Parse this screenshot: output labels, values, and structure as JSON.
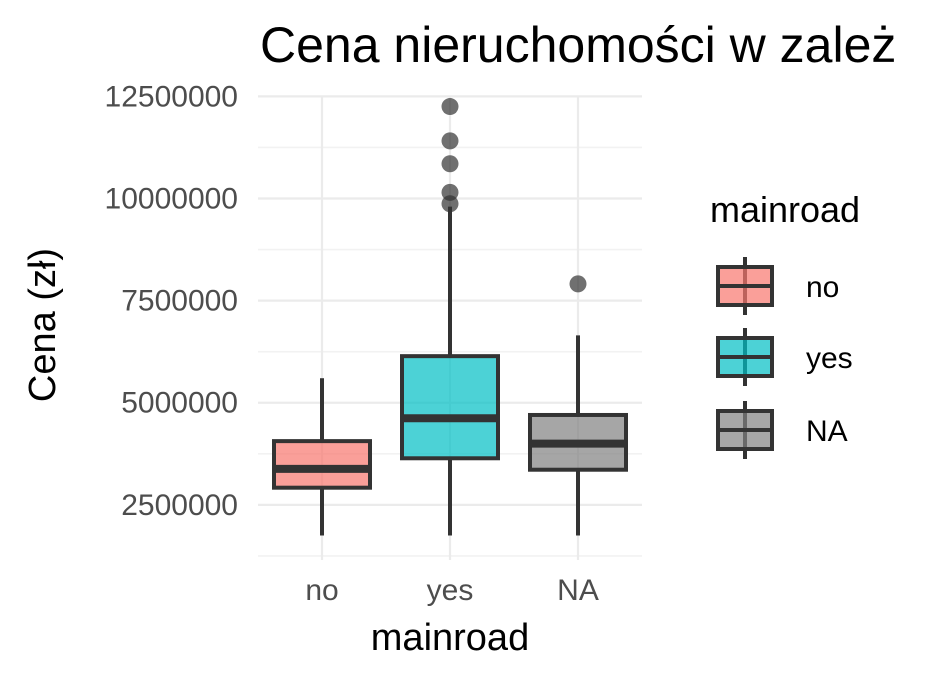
{
  "chart_data": {
    "type": "boxplot",
    "title": "Cena nieruchomości w zależ",
    "xlabel": "mainroad",
    "ylabel": "Cena (zł)",
    "categories": [
      "no",
      "yes",
      "NA"
    ],
    "ylim": [
      1150000,
      12900000
    ],
    "yticks": [
      2500000,
      5000000,
      7500000,
      10000000,
      12500000
    ],
    "ytick_labels": [
      "2500000",
      "5000000",
      "7500000",
      "10000000",
      "12500000"
    ],
    "grid": true,
    "legend": {
      "title": "mainroad",
      "position": "right",
      "entries": [
        "no",
        "yes",
        "NA"
      ]
    },
    "colors": [
      "#F8766D",
      "#00BFC4",
      "#808080"
    ],
    "boxes": [
      {
        "category": "no",
        "whisker_low": 1750000,
        "q1": 2920000,
        "median": 3380000,
        "q3": 4060000,
        "whisker_high": 5600000,
        "outliers": []
      },
      {
        "category": "yes",
        "whisker_low": 1750000,
        "q1": 3640000,
        "median": 4620000,
        "q3": 6140000,
        "whisker_high": 9800000,
        "outliers": [
          9870000,
          10150000,
          10850000,
          11410000,
          12250000
        ]
      },
      {
        "category": "NA",
        "whisker_low": 1750000,
        "q1": 3360000,
        "median": 4000000,
        "q3": 4700000,
        "whisker_high": 6650000,
        "outliers": [
          7910000
        ]
      }
    ]
  }
}
